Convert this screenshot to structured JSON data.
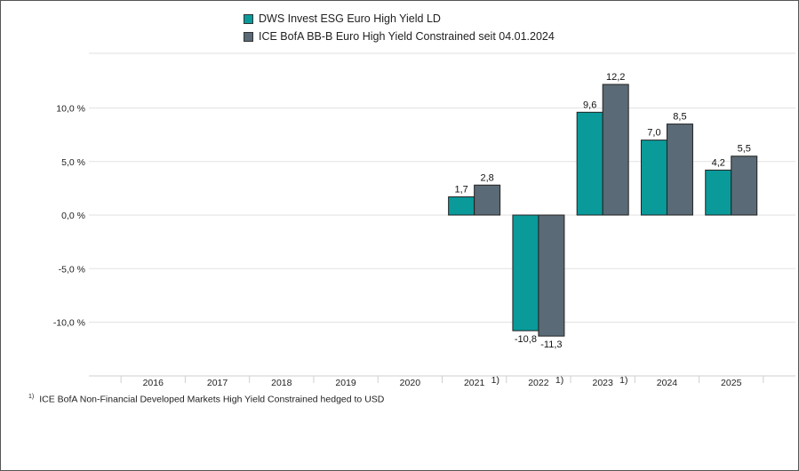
{
  "chart_data": {
    "type": "bar",
    "categories": [
      "2016",
      "2017",
      "2018",
      "2019",
      "2020",
      "2021",
      "2022",
      "2023",
      "2024",
      "2025"
    ],
    "category_notes": [
      "",
      "",
      "",
      "",
      "",
      "1)",
      "1)",
      "1)",
      "",
      ""
    ],
    "series": [
      {
        "name": "DWS Invest ESG Euro High Yield LD",
        "color": "#0a9a9a",
        "values": [
          null,
          null,
          null,
          null,
          null,
          1.7,
          -10.8,
          9.6,
          7.0,
          4.2
        ],
        "labels": [
          "",
          "",
          "",
          "",
          "",
          "1,7",
          "-10,8",
          "9,6",
          "7,0",
          "4,2"
        ]
      },
      {
        "name": "ICE BofA BB-B Euro High Yield Constrained seit 04.01.2024",
        "color": "#5a6a76",
        "values": [
          null,
          null,
          null,
          null,
          null,
          2.8,
          -11.3,
          12.2,
          8.5,
          5.5
        ],
        "labels": [
          "",
          "",
          "",
          "",
          "",
          "2,8",
          "-11,3",
          "12,2",
          "8,5",
          "5,5"
        ]
      }
    ],
    "yticks": [
      10,
      5,
      0,
      -5,
      -10
    ],
    "ytick_labels": [
      "10,0 %",
      "5,0 %",
      "0,0 %",
      "-5,0 %",
      "-10,0 %"
    ],
    "ylim": [
      -14.5,
      15
    ],
    "grid": true,
    "legend_position": "top"
  },
  "footnote": {
    "marker": "1)",
    "text": "ICE BofA Non-Financial Developed Markets High Yield Constrained hedged to USD"
  }
}
